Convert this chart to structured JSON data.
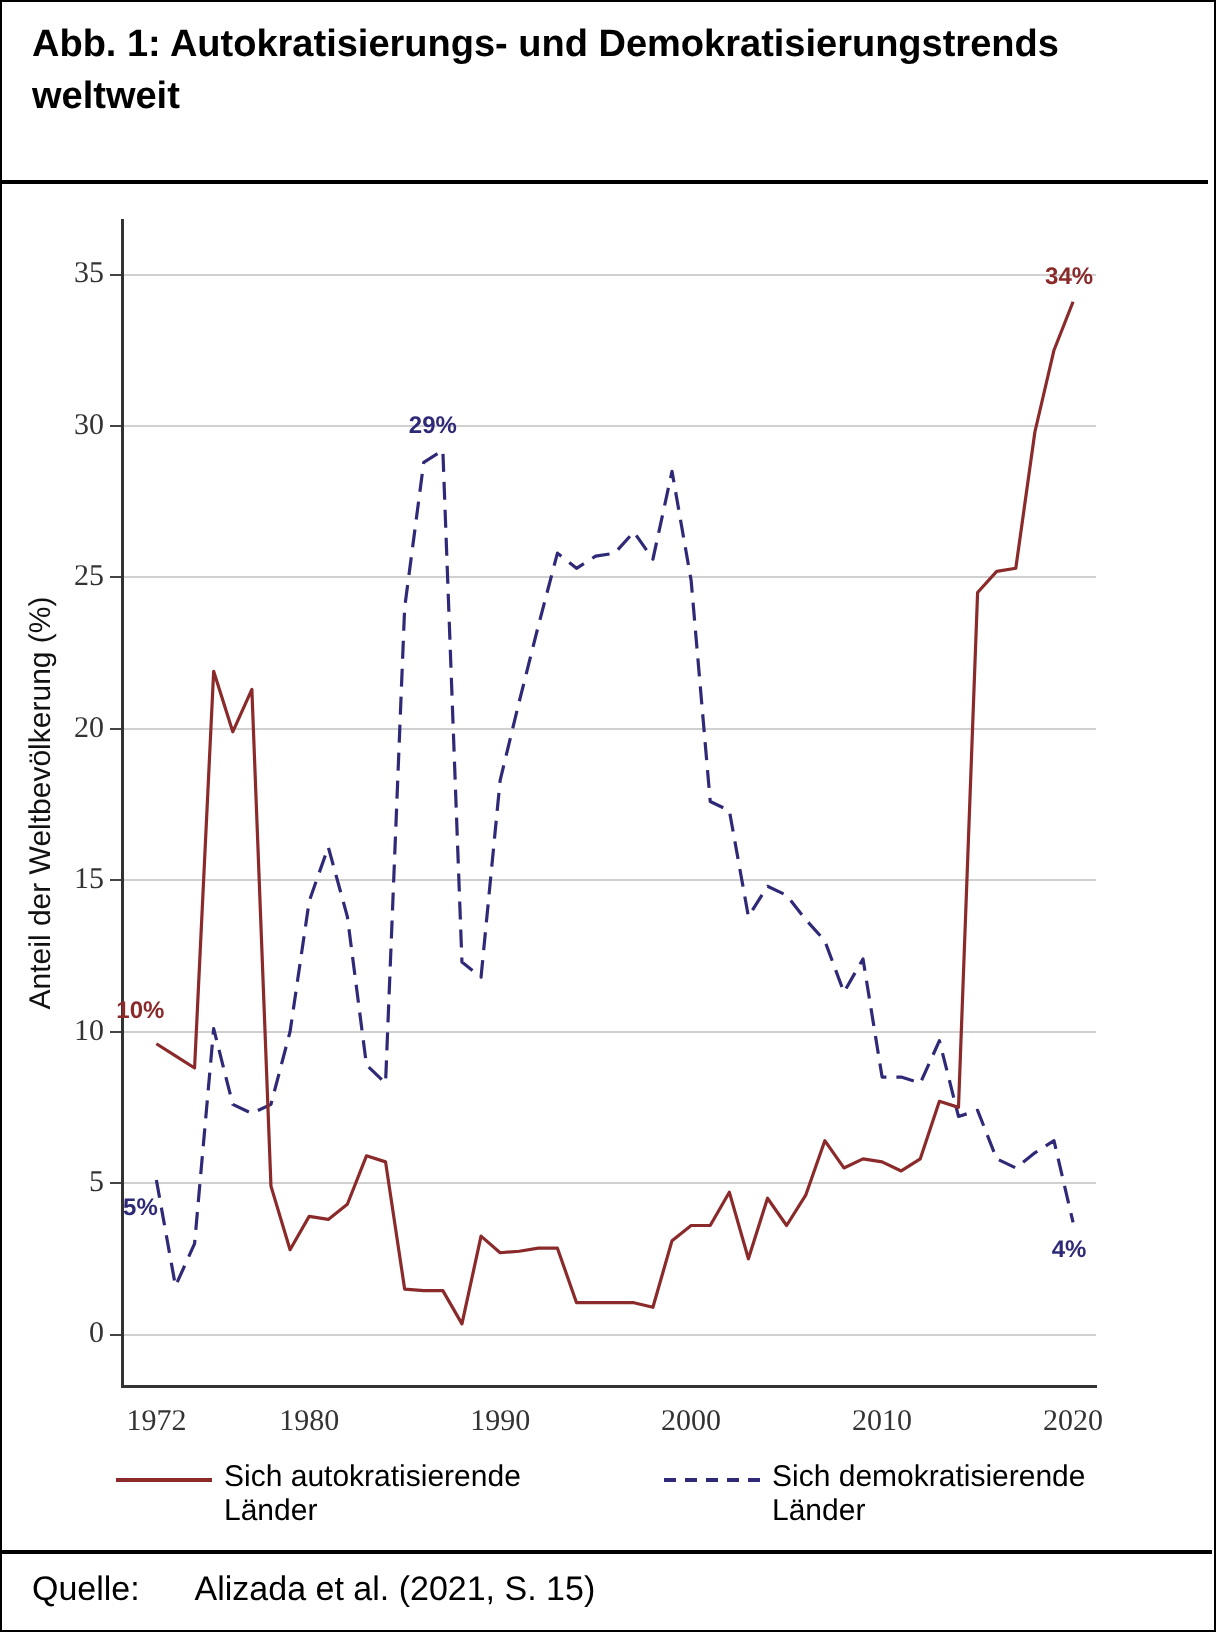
{
  "chart_data": {
    "type": "line",
    "title": "Abb. 1:   Autokratisierungs- und Demokratisierungstrends weltweit",
    "ylabel": "Anteil der Weltbevölkerung (%)",
    "x": [
      1972,
      1973,
      1974,
      1975,
      1976,
      1977,
      1978,
      1979,
      1980,
      1981,
      1982,
      1983,
      1984,
      1985,
      1986,
      1987,
      1988,
      1989,
      1990,
      1991,
      1992,
      1993,
      1994,
      1995,
      1996,
      1997,
      1998,
      1999,
      2000,
      2001,
      2002,
      2003,
      2004,
      2005,
      2006,
      2007,
      2008,
      2009,
      2010,
      2011,
      2012,
      2013,
      2014,
      2015,
      2016,
      2017,
      2018,
      2019,
      2020
    ],
    "series": [
      {
        "name": "Sich autokratisierende Länder",
        "color": "#8b2a2a",
        "line_style": "solid",
        "values": [
          9.6,
          9.2,
          8.8,
          21.9,
          19.9,
          21.3,
          4.9,
          2.8,
          3.9,
          3.8,
          4.3,
          5.9,
          5.7,
          1.5,
          1.45,
          1.45,
          0.35,
          3.25,
          2.7,
          2.75,
          2.85,
          2.85,
          1.05,
          1.05,
          1.05,
          1.05,
          0.9,
          3.1,
          3.6,
          3.6,
          4.7,
          2.5,
          4.5,
          3.6,
          4.6,
          6.4,
          5.5,
          5.8,
          5.7,
          5.4,
          5.8,
          7.7,
          7.5,
          24.5,
          25.2,
          25.3,
          29.8,
          32.5,
          34.1
        ],
        "value_labels": [
          "10%",
          null,
          null,
          null,
          null,
          null,
          null,
          null,
          null,
          null,
          null,
          null,
          null,
          null,
          null,
          null,
          null,
          null,
          null,
          null,
          null,
          null,
          null,
          null,
          null,
          null,
          null,
          null,
          null,
          null,
          null,
          null,
          null,
          null,
          null,
          null,
          null,
          null,
          null,
          null,
          null,
          null,
          null,
          null,
          null,
          null,
          null,
          null,
          "34%"
        ]
      },
      {
        "name": "Sich demokratisierende Länder",
        "color": "#2f2a78",
        "line_style": "dashed",
        "values": [
          5.1,
          1.6,
          3.0,
          10.1,
          7.6,
          7.3,
          7.6,
          10.0,
          14.3,
          16.1,
          13.8,
          8.9,
          8.3,
          24.0,
          28.8,
          29.2,
          12.3,
          11.8,
          18.3,
          20.9,
          23.4,
          25.8,
          25.3,
          25.7,
          25.8,
          26.5,
          25.6,
          28.5,
          24.9,
          17.6,
          17.3,
          13.8,
          14.8,
          14.5,
          13.7,
          13.0,
          11.3,
          12.4,
          8.5,
          8.5,
          8.3,
          9.7,
          7.2,
          7.4,
          5.8,
          5.5,
          6.0,
          6.4,
          3.7
        ],
        "value_labels": [
          "5%",
          null,
          null,
          null,
          null,
          null,
          null,
          null,
          null,
          null,
          null,
          null,
          null,
          null,
          null,
          "29%",
          null,
          null,
          null,
          null,
          null,
          null,
          null,
          null,
          null,
          null,
          null,
          null,
          null,
          null,
          null,
          null,
          null,
          null,
          null,
          null,
          null,
          null,
          null,
          null,
          null,
          null,
          null,
          null,
          null,
          null,
          null,
          null,
          "4%"
        ]
      }
    ],
    "xlim": [
      1970.2,
      2021.2
    ],
    "xticks": [
      1972,
      1980,
      1990,
      2000,
      2010,
      2020
    ],
    "ylim": [
      -1.7,
      36.8
    ],
    "yticks": [
      0,
      5,
      10,
      15,
      20,
      25,
      30,
      35
    ],
    "grid": "y",
    "legend": "bottom",
    "marker": "none",
    "annotations": [
      "Quelle:      Alizada et al. (2021, S. 15)"
    ]
  }
}
